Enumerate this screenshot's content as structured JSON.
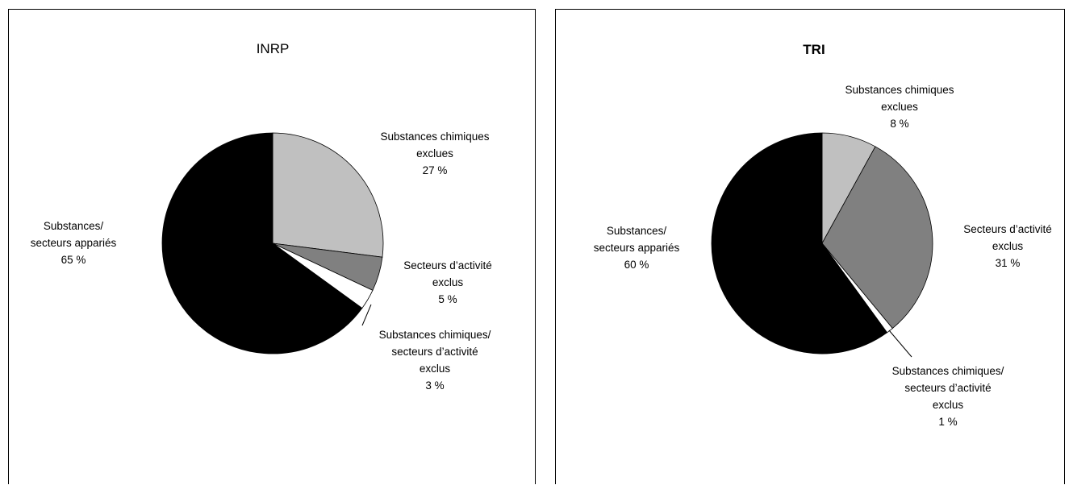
{
  "chart_data": [
    {
      "type": "pie",
      "title": "INRP",
      "slices": [
        {
          "label": [
            "Substances chimiques",
            "exclues",
            "27 %"
          ],
          "value": 27,
          "color": "#c0c0c0"
        },
        {
          "label": [
            "Secteurs d’activité",
            "exclus",
            "5 %"
          ],
          "value": 5,
          "color": "#808080"
        },
        {
          "label": [
            "Substances chimiques/",
            "secteurs d’activité",
            "exclus",
            "3 %"
          ],
          "value": 3,
          "color": "#ffffff"
        },
        {
          "label": [
            "Substances/",
            "secteurs appariés",
            "65 %"
          ],
          "value": 65,
          "color": "#000000"
        }
      ]
    },
    {
      "type": "pie",
      "title": "TRI",
      "slices": [
        {
          "label": [
            "Substances chimiques",
            "exclues",
            "8 %"
          ],
          "value": 8,
          "color": "#c0c0c0"
        },
        {
          "label": [
            "Secteurs d’activité",
            "exclus",
            "31 %"
          ],
          "value": 31,
          "color": "#808080"
        },
        {
          "label": [
            "Substances chimiques/",
            "secteurs d’activité",
            "exclus",
            "1 %"
          ],
          "value": 1,
          "color": "#ffffff"
        },
        {
          "label": [
            "Substances/",
            "secteurs appariés",
            "60 %"
          ],
          "value": 60,
          "color": "#000000"
        }
      ]
    }
  ]
}
